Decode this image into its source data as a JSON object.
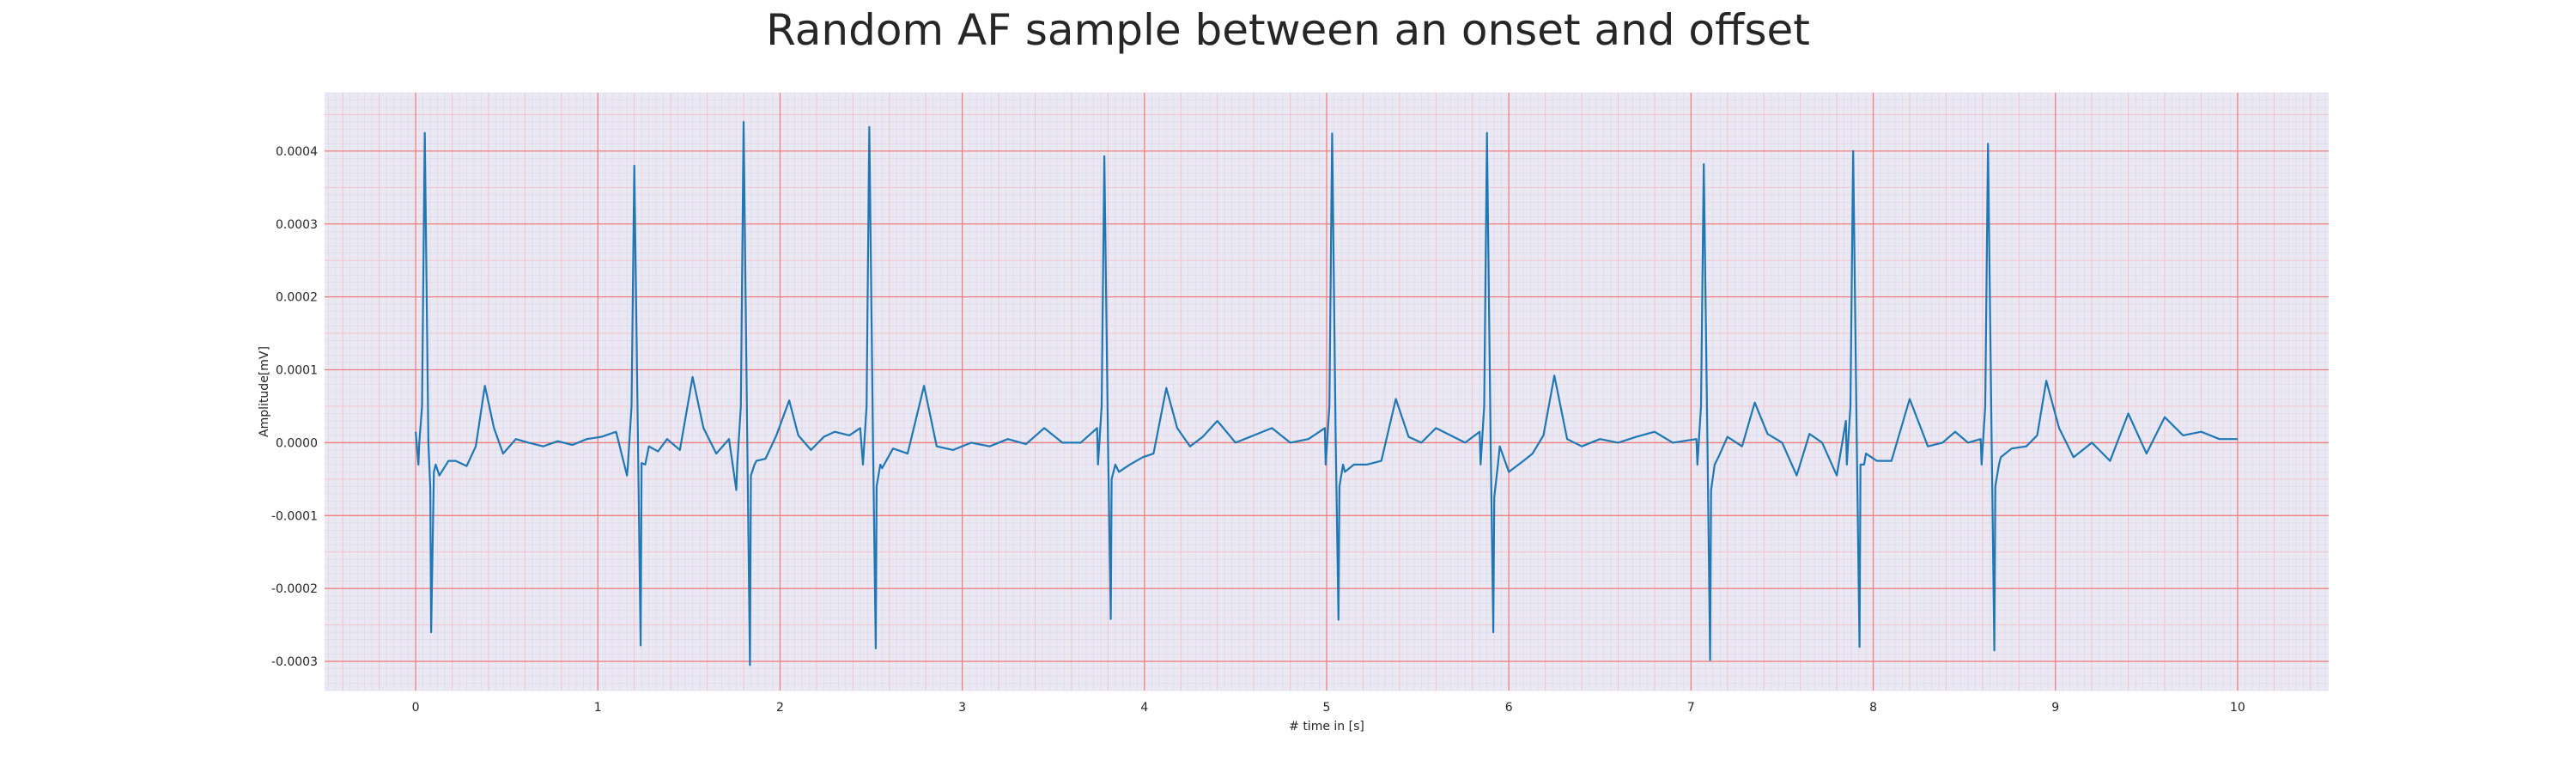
{
  "chart_data": {
    "type": "line",
    "title": "Random AF sample between an onset and offset",
    "xlabel": "# time in [s]",
    "ylabel": "Amplitude[mV]",
    "xlim": [
      -0.5,
      10.5
    ],
    "ylim": [
      -0.00034,
      0.00048
    ],
    "xticks": [
      0,
      1,
      2,
      3,
      4,
      5,
      6,
      7,
      8,
      9,
      10
    ],
    "xtick_labels": [
      "0",
      "1",
      "2",
      "3",
      "4",
      "5",
      "6",
      "7",
      "8",
      "9",
      "10"
    ],
    "yticks": [
      -0.0003,
      -0.0002,
      -0.0001,
      0.0,
      0.0001,
      0.0002,
      0.0003,
      0.0004
    ],
    "ytick_labels": [
      "-0.0003",
      "-0.0002",
      "-0.0001",
      "0.0000",
      "0.0001",
      "0.0002",
      "0.0003",
      "0.0004"
    ],
    "grid": true,
    "colors": {
      "line": "#1f77b4",
      "background": "#eae8f2",
      "major_grid": "#f08080",
      "minor_grid": "#f2c4cf",
      "fine_grid": "#dcd6e6"
    },
    "series": [
      {
        "beats": [
          {
            "t": 0.05,
            "r": 0.000425,
            "s": -0.00026
          },
          {
            "t": 1.2,
            "r": 0.00038,
            "s": -0.000278
          },
          {
            "t": 1.8,
            "r": 0.00044,
            "s": -0.000305
          },
          {
            "t": 2.49,
            "r": 0.000433,
            "s": -0.000282
          },
          {
            "t": 3.78,
            "r": 0.000393,
            "s": -0.000242
          },
          {
            "t": 5.03,
            "r": 0.000424,
            "s": -0.000243
          },
          {
            "t": 5.88,
            "r": 0.000425,
            "s": -0.00026
          },
          {
            "t": 7.07,
            "r": 0.000382,
            "s": -0.000298
          },
          {
            "t": 7.89,
            "r": 0.0004,
            "s": -0.00028
          },
          {
            "t": 8.63,
            "r": 0.00041,
            "s": -0.000285
          }
        ],
        "x": [
          0.0,
          0.02,
          0.08,
          0.1,
          0.13,
          0.18,
          0.22,
          0.28,
          0.33,
          0.38,
          0.43,
          0.48,
          0.55,
          0.62,
          0.7,
          0.78,
          0.86,
          0.94,
          1.02,
          1.1,
          1.16,
          1.24,
          1.28,
          1.33,
          1.38,
          1.45,
          1.52,
          1.58,
          1.65,
          1.72,
          1.76,
          1.84,
          1.87,
          1.92,
          1.98,
          2.05,
          2.1,
          2.17,
          2.24,
          2.3,
          2.38,
          2.44,
          2.53,
          2.56,
          2.62,
          2.7,
          2.79,
          2.86,
          2.95,
          3.05,
          3.15,
          3.25,
          3.35,
          3.45,
          3.55,
          3.65,
          3.74,
          3.82,
          3.86,
          3.92,
          3.99,
          4.05,
          4.12,
          4.18,
          4.25,
          4.32,
          4.4,
          4.5,
          4.6,
          4.7,
          4.8,
          4.9,
          4.99,
          5.07,
          5.1,
          5.15,
          5.22,
          5.3,
          5.38,
          5.45,
          5.52,
          5.6,
          5.68,
          5.76,
          5.84,
          5.92,
          5.95,
          6.0,
          6.08,
          6.13,
          6.19,
          6.25,
          6.32,
          6.4,
          6.5,
          6.6,
          6.7,
          6.8,
          6.9,
          7.03,
          7.11,
          7.15,
          7.2,
          7.28,
          7.35,
          7.42,
          7.5,
          7.58,
          7.65,
          7.72,
          7.8,
          7.85,
          7.93,
          7.96,
          8.02,
          8.1,
          8.2,
          8.3,
          8.38,
          8.45,
          8.52,
          8.59,
          8.67,
          8.7,
          8.76,
          8.84,
          8.9,
          8.95,
          9.02,
          9.1,
          9.2,
          9.3,
          9.4,
          9.5,
          9.6,
          9.7,
          9.8,
          9.9,
          10.0
        ],
        "y": [
          1.5e-05,
          0.0,
          -6.2e-05,
          -4e-05,
          -4.5e-05,
          -2.5e-05,
          -2.5e-05,
          -3.2e-05,
          -5e-06,
          7.8e-05,
          2e-05,
          -1.5e-05,
          5e-06,
          0.0,
          -5e-06,
          2e-06,
          -3e-06,
          5e-06,
          8e-06,
          1.5e-05,
          -4.5e-05,
          -2.8e-05,
          -5e-06,
          -1.2e-05,
          5e-06,
          -1e-05,
          9e-05,
          2e-05,
          -1.5e-05,
          5e-06,
          -6.5e-05,
          -4.5e-05,
          -2.5e-05,
          -2.2e-05,
          1e-05,
          5.8e-05,
          1e-05,
          -1e-05,
          8e-06,
          1.5e-05,
          1e-05,
          2e-05,
          -6e-05,
          -3.5e-05,
          -8e-06,
          -1.5e-05,
          7.8e-05,
          -5e-06,
          -1e-05,
          0.0,
          -5e-06,
          5e-06,
          -2e-06,
          2e-05,
          0.0,
          0.0,
          2e-05,
          -5e-05,
          -4e-05,
          -3e-05,
          -2e-05,
          -1.5e-05,
          7.5e-05,
          2e-05,
          -5e-06,
          8e-06,
          3e-05,
          0.0,
          1e-05,
          2e-05,
          0.0,
          5e-06,
          2e-05,
          -6e-05,
          -4e-05,
          -3e-05,
          -3e-05,
          -2.5e-05,
          6e-05,
          8e-06,
          0.0,
          2e-05,
          1e-05,
          0.0,
          1.5e-05,
          -7.5e-05,
          -5e-06,
          -4e-05,
          -2.5e-05,
          -1.5e-05,
          1e-05,
          9.2e-05,
          5e-06,
          -5e-06,
          5e-06,
          0.0,
          8e-06,
          1.5e-05,
          0.0,
          5e-06,
          -6.5e-05,
          -2e-05,
          8e-06,
          -5e-06,
          5.5e-05,
          1.2e-05,
          0.0,
          -4.5e-05,
          1.2e-05,
          0.0,
          -4.5e-05,
          3e-05,
          -3e-05,
          -1.5e-05,
          -2.5e-05,
          -2.5e-05,
          6e-05,
          -5e-06,
          0.0,
          1.5e-05,
          0.0,
          5e-06,
          -6e-05,
          -2e-05,
          -8e-06,
          -5e-06,
          1e-05,
          8.5e-05,
          2e-05,
          -2e-05,
          0.0,
          -2.5e-05,
          4e-05,
          -1.5e-05,
          3.5e-05,
          1e-05,
          1.5e-05,
          5e-06,
          5e-06
        ]
      }
    ]
  }
}
